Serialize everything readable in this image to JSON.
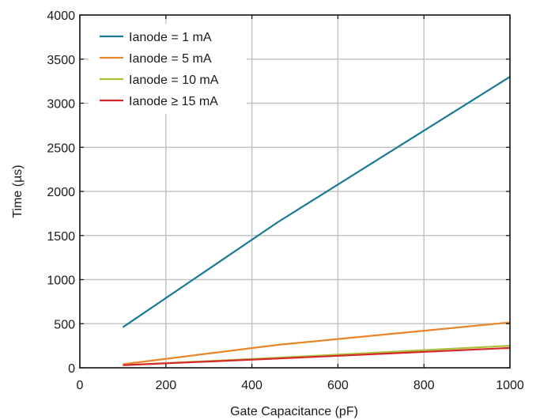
{
  "chart_data": {
    "type": "line",
    "xlabel": "Gate Capacitance (pF)",
    "ylabel": "Time (µs)",
    "xlim": [
      0,
      1000
    ],
    "ylim": [
      0,
      4000
    ],
    "xticks": [
      0,
      200,
      400,
      600,
      800,
      1000
    ],
    "yticks": [
      0,
      500,
      1000,
      1500,
      2000,
      2500,
      3000,
      3500,
      4000
    ],
    "grid": true,
    "legend_position": "top-left",
    "series": [
      {
        "name": "Ianode = 1 mA",
        "color": "#1a7a96",
        "x": [
          100,
          460,
          1000
        ],
        "y": [
          460,
          1650,
          3300
        ]
      },
      {
        "name": "Ianode = 5 mA",
        "color": "#e8862c",
        "x": [
          100,
          460,
          1000
        ],
        "y": [
          40,
          260,
          515
        ]
      },
      {
        "name": "Ianode = 10 mA",
        "color": "#a6c33a",
        "x": [
          100,
          460,
          1000
        ],
        "y": [
          30,
          115,
          250
        ]
      },
      {
        "name": "Ianode ≥ 15 mA",
        "color": "#d8272a",
        "x": [
          100,
          460,
          1000
        ],
        "y": [
          30,
          105,
          225
        ]
      }
    ]
  }
}
